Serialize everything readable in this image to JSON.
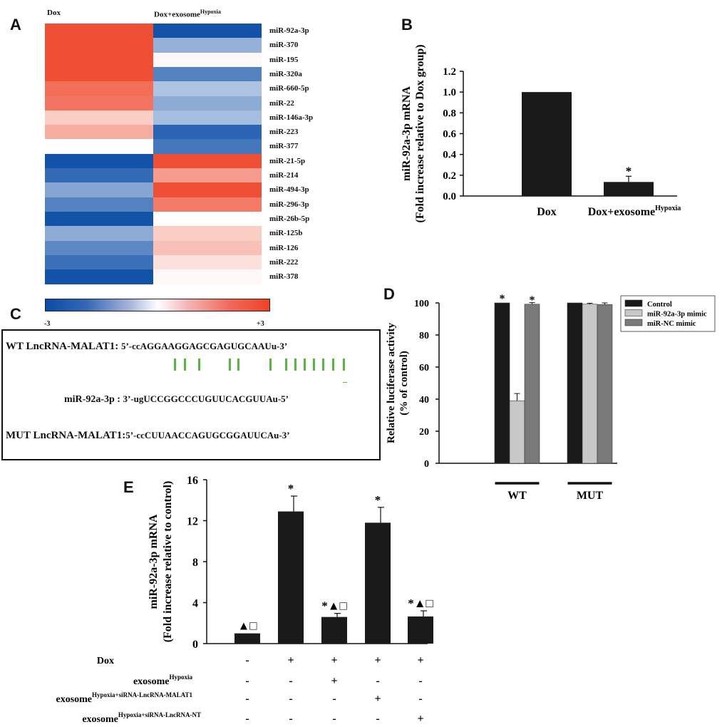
{
  "chart_data": [
    {
      "panel": "A",
      "type": "heatmap",
      "columns": [
        "Dox",
        "Dox+exosome",
        "Hypoxia"
      ],
      "rows": [
        "miR-92a-3p",
        "miR-370",
        "miR-195",
        "miR-320a",
        "miR-660-5p",
        "miR-22",
        "miR-146a-3p",
        "miR-223",
        "miR-377",
        "miR-21-5p",
        "miR-214",
        "miR-494-3p",
        "miR-296-3p",
        "miR-26b-5p",
        "miR-125b",
        "miR-126",
        "miR-222",
        "miR-378"
      ],
      "values": [
        [
          2.8,
          -2.9
        ],
        [
          2.8,
          -1.3
        ],
        [
          2.8,
          0.1
        ],
        [
          2.8,
          -2.1
        ],
        [
          2.3,
          -1.0
        ],
        [
          2.2,
          -1.4
        ],
        [
          0.8,
          -1.1
        ],
        [
          1.3,
          -2.6
        ],
        [
          0.0,
          -2.3
        ],
        [
          -2.9,
          2.8
        ],
        [
          -2.5,
          1.6
        ],
        [
          -1.5,
          2.8
        ],
        [
          -2.1,
          2.1
        ],
        [
          -2.9,
          0.0
        ],
        [
          -1.4,
          0.8
        ],
        [
          -2.0,
          1.0
        ],
        [
          -2.4,
          0.5
        ],
        [
          -2.9,
          0.1
        ]
      ],
      "scale_min_label": "-3",
      "scale_max_label": "+3",
      "colors": {
        "low": "#0a4ca6",
        "mid": "#ffffff",
        "high": "#ee4226"
      }
    },
    {
      "panel": "B",
      "type": "bar",
      "categories": [
        "Dox",
        "Dox+exosome"
      ],
      "category_sup": [
        "",
        "Hypoxia"
      ],
      "values": [
        1.0,
        0.135
      ],
      "errors": [
        0,
        0.055
      ],
      "significance": [
        "",
        "*"
      ],
      "ylabel": "miR-92a-3p mRNA",
      "ylabel2": "(Fold increase relative to Dox group)",
      "ylim": [
        0,
        1.2
      ],
      "yticks": [
        "0.0",
        "0.2",
        "0.4",
        "0.6",
        "0.8",
        "1.0",
        "1.2"
      ]
    },
    {
      "panel": "D",
      "type": "bar",
      "groups": [
        "WT",
        "MUT"
      ],
      "series": [
        {
          "name": "Control",
          "values": [
            100,
            100
          ],
          "errors": [
            0,
            0
          ],
          "color": "#1a1a1a"
        },
        {
          "name": "miR-92a-3p mimic",
          "values": [
            39,
            99.2
          ],
          "errors": [
            4.5,
            0.6
          ],
          "color": "#c8c8c8"
        },
        {
          "name": "miR-NC mimic",
          "values": [
            99.2,
            99
          ],
          "errors": [
            1,
            1
          ],
          "color": "#7a7a7a"
        }
      ],
      "significance": {
        "WT": [
          "*",
          "",
          "*"
        ],
        "MUT": [
          "",
          "",
          ""
        ]
      },
      "ylabel": "Relative luciferase activity",
      "ylabel2": "(% of control)",
      "ylim": [
        0,
        100
      ],
      "yticks": [
        "0",
        "20",
        "40",
        "60",
        "80",
        "100"
      ]
    },
    {
      "panel": "E",
      "type": "bar",
      "values": [
        1.0,
        12.9,
        2.6,
        11.8,
        2.65
      ],
      "errors": [
        0,
        1.5,
        0.35,
        1.5,
        0.55
      ],
      "marks": [
        "▲□",
        "*",
        "*▲□",
        "*",
        "*▲□"
      ],
      "ylabel": "miR-92a-3p mRNA",
      "ylabel2": "(Fold increase relative to control)",
      "ylim": [
        0,
        16
      ],
      "yticks": [
        "0",
        "4",
        "8",
        "12",
        "16"
      ],
      "conditions": [
        {
          "label": "Dox",
          "sup": "",
          "signs": [
            "-",
            "+",
            "+",
            "+",
            "+"
          ]
        },
        {
          "label": "exosome",
          "sup": "Hypoxia",
          "signs": [
            "-",
            "-",
            "+",
            "-",
            "-"
          ]
        },
        {
          "label": "exosome",
          "sup": "Hypoxia+siRNA-LncRNA-MALAT1",
          "signs": [
            "-",
            "-",
            "-",
            "+",
            "-"
          ]
        },
        {
          "label": "exosome",
          "sup": "Hypoxia+siRNA-LncRNA-NT",
          "signs": [
            "-",
            "-",
            "-",
            "-",
            "+"
          ]
        }
      ]
    }
  ],
  "panel_letters": {
    "a": "A",
    "b": "B",
    "c": "C",
    "d": "D",
    "e": "E"
  },
  "heat_cols": {
    "left": "Dox",
    "right_main": "Dox+exosome",
    "right_sup": "Hypoxia"
  },
  "panel_c": {
    "wt_label": "WT LncRNA-MALAT1:",
    "wt_seq": "5’-ccAGGAAGGAGCGAGUGCAAUu-3’",
    "mir_label": "miR-92a-3p :",
    "mir_seq": "3’-ugUCCGGCCCUGUUCACGUUAu-5’",
    "mut_label": "MUT LncRNA-MALAT1:",
    "mut_seq": "5’-ccCUUAACCAGUGCGGAUUCAu-3’",
    "pair_color": "#59b541"
  }
}
